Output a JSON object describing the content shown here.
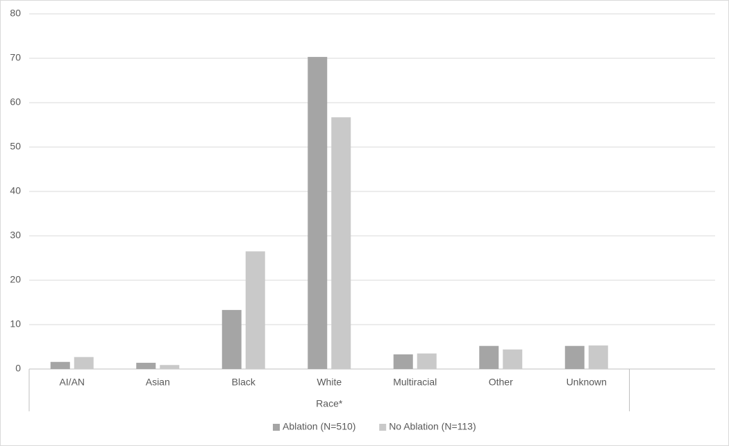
{
  "chart_data": {
    "type": "bar",
    "x_label": "Race*",
    "categories": [
      "AI/AN",
      "Asian",
      "Black",
      "White",
      "Multiracial",
      "Other",
      "Unknown",
      null
    ],
    "series": [
      {
        "name": "Ablation (N=510)",
        "color": "#a5a5a5",
        "values": [
          1.6,
          1.4,
          13.3,
          70.3,
          3.3,
          5.2,
          5.2,
          null
        ]
      },
      {
        "name": "No Ablation (N=113)",
        "color": "#c9c9c9",
        "values": [
          2.7,
          0.9,
          26.5,
          56.7,
          3.5,
          4.4,
          5.3,
          null
        ]
      }
    ],
    "ylim": [
      0,
      80
    ],
    "yticks": [
      0,
      10,
      20,
      30,
      40,
      50,
      60,
      70,
      80
    ],
    "grid": true,
    "legend": "bottom"
  }
}
